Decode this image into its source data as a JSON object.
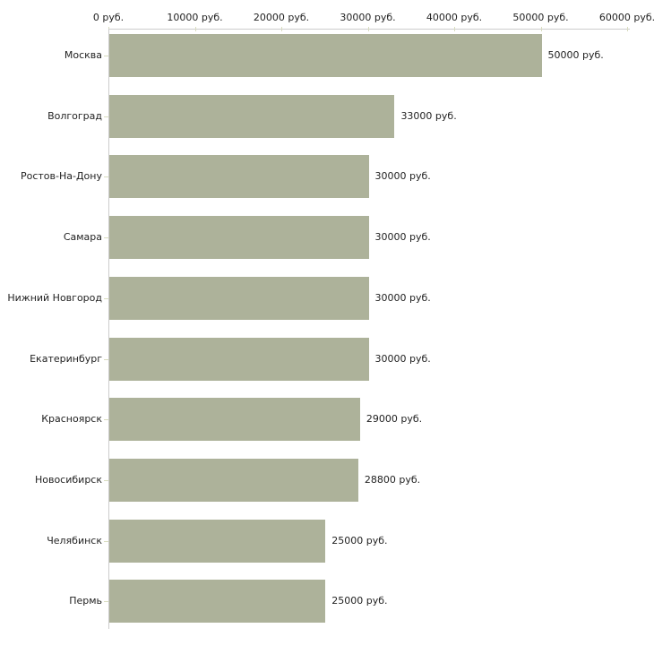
{
  "chart_data": {
    "type": "bar",
    "orientation": "horizontal",
    "title": "",
    "xlabel": "",
    "ylabel": "",
    "xlim": [
      0,
      60000
    ],
    "grid": false,
    "legend": false,
    "categories": [
      "Москва",
      "Волгоград",
      "Ростов-На-Дону",
      "Самара",
      "Нижний Новгород",
      "Екатеринбург",
      "Красноярск",
      "Новосибирск",
      "Челябинск",
      "Пермь"
    ],
    "values": [
      50000,
      33000,
      30000,
      30000,
      30000,
      30000,
      29000,
      28800,
      25000,
      25000
    ],
    "value_labels": [
      "50000 руб.",
      "33000 руб.",
      "30000 руб.",
      "30000 руб.",
      "30000 руб.",
      "30000 руб.",
      "29000 руб.",
      "28800 руб.",
      "25000 руб.",
      "25000 руб."
    ],
    "x_tick_values": [
      0,
      10000,
      20000,
      30000,
      40000,
      50000,
      60000
    ],
    "x_tick_labels": [
      "0 руб.",
      "10000 руб.",
      "20000 руб.",
      "30000 руб.",
      "40000 руб.",
      "50000 руб.",
      "60000 руб."
    ],
    "colors": {
      "bar": "#adb29a",
      "axis_line": "#cccccc",
      "tick_mark": "#d8dcbe",
      "text": "#222222",
      "background": "#ffffff"
    }
  }
}
